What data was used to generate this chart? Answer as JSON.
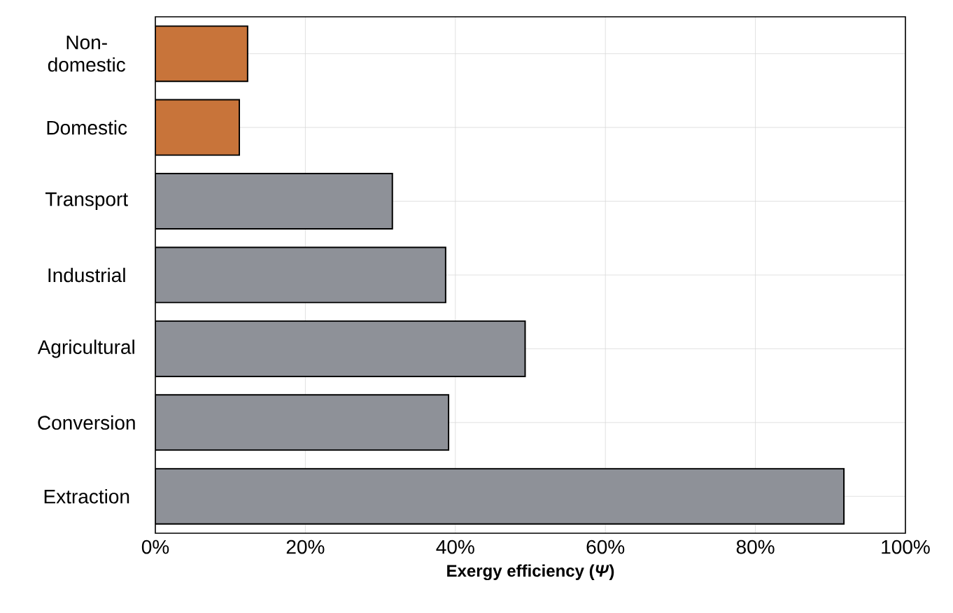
{
  "chart_data": {
    "type": "bar",
    "orientation": "horizontal",
    "xlabel": "Exergy efficiency (*Ψ*)",
    "categories": [
      "Non-domestic",
      "Domestic",
      "Transport",
      "Industrial",
      "Agricultural",
      "Conversion",
      "Extraction"
    ],
    "values": [
      12.3,
      11.2,
      31.6,
      38.7,
      49.3,
      39.1,
      91.8
    ],
    "colors": [
      "#c8743a",
      "#c8743a",
      "#8e9198",
      "#8e9198",
      "#8e9198",
      "#8e9198",
      "#8e9198"
    ],
    "xlim": [
      0,
      100
    ],
    "xticks": [
      {
        "value": 0,
        "label": "0%"
      },
      {
        "value": 20,
        "label": "20%"
      },
      {
        "value": 40,
        "label": "40%"
      },
      {
        "value": 60,
        "label": "60%"
      },
      {
        "value": 80,
        "label": "80%"
      },
      {
        "value": 100,
        "label": "100%"
      }
    ],
    "grid": true
  }
}
